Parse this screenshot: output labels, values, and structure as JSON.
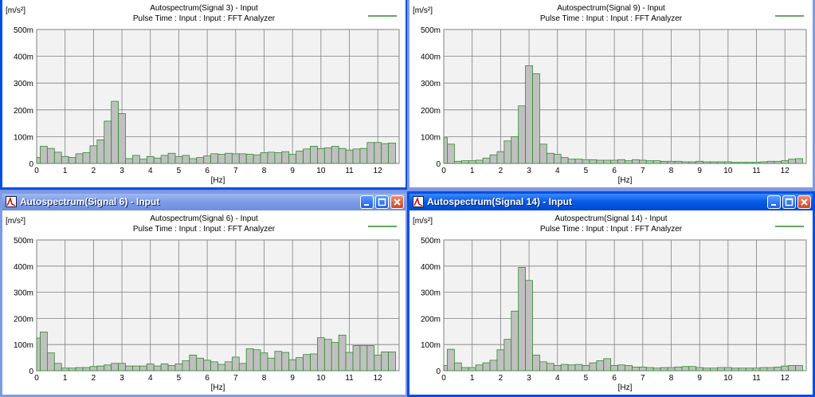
{
  "colors": {
    "bar_fill": "#c0c0c0",
    "bar_stroke": "#2e8b2e",
    "legend_line": "#2e8b2e",
    "grid": "#808080",
    "plot_bg": "#f2f2f2"
  },
  "windows": [
    {
      "id": "w3",
      "title_visible": false,
      "title": "",
      "plot": {
        "unit": "[m/s²]",
        "title1": "Autospectrum(Signal 3) - Input",
        "title2": "Pulse Time : Input : Input : FFT Analyzer",
        "xlabel": "[Hz]"
      },
      "chart_data": {
        "type": "bar",
        "series": [
          {
            "name": "",
            "values": [
              22,
              64,
              56,
              42,
              26,
              22,
              36,
              40,
              66,
              88,
              158,
              232,
              186,
              18,
              30,
              16,
              26,
              20,
              30,
              38,
              26,
              30,
              18,
              22,
              28,
              36,
              34,
              38,
              36,
              36,
              34,
              32,
              40,
              42,
              40,
              44,
              34,
              46,
              54,
              64,
              56,
              58,
              64,
              56,
              50,
              54,
              56,
              78,
              78,
              74,
              76
            ]
          }
        ],
        "bin_hz": 0.25,
        "x_ticks": [
          0,
          1,
          2,
          3,
          4,
          5,
          6,
          7,
          8,
          9,
          10,
          11,
          12
        ],
        "y_ticks": [
          "0",
          "100m",
          "200m",
          "300m",
          "400m",
          "500m"
        ],
        "ylim": [
          0,
          500
        ]
      }
    },
    {
      "id": "w9",
      "title_visible": false,
      "title": "",
      "plot": {
        "unit": "[m/s²]",
        "title1": "Autospectrum(Signal 9) - Input",
        "title2": "Pulse Time : Input : Input : FFT Analyzer",
        "xlabel": "[Hz]"
      },
      "chart_data": {
        "type": "bar",
        "series": [
          {
            "name": "",
            "values": [
              96,
              72,
              8,
              10,
              10,
              12,
              20,
              32,
              44,
              84,
              100,
              215,
              365,
              335,
              72,
              38,
              34,
              22,
              16,
              16,
              14,
              14,
              12,
              12,
              12,
              14,
              10,
              14,
              12,
              10,
              10,
              8,
              8,
              8,
              6,
              6,
              8,
              6,
              6,
              6,
              6,
              4,
              4,
              4,
              4,
              6,
              8,
              8,
              10,
              16,
              18
            ]
          }
        ],
        "bin_hz": 0.25,
        "x_ticks": [
          0,
          1,
          2,
          3,
          4,
          5,
          6,
          7,
          8,
          9,
          10,
          11,
          12
        ],
        "y_ticks": [
          "0",
          "100m",
          "200m",
          "300m",
          "400m",
          "500m"
        ],
        "ylim": [
          0,
          500
        ]
      }
    },
    {
      "id": "w6",
      "title_visible": true,
      "title": "Autospectrum(Signal 6) - Input",
      "plot": {
        "unit": "[m/s²]",
        "title1": "Autospectrum(Signal 6) - Input",
        "title2": "Pulse Time : Input : Input : FFT Analyzer",
        "xlabel": "[Hz]"
      },
      "chart_data": {
        "type": "bar",
        "series": [
          {
            "name": "",
            "values": [
              125,
              148,
              68,
              28,
              10,
              10,
              12,
              12,
              16,
              18,
              22,
              28,
              28,
              18,
              18,
              18,
              26,
              18,
              26,
              20,
              26,
              38,
              60,
              48,
              40,
              34,
              24,
              34,
              52,
              28,
              84,
              80,
              68,
              48,
              74,
              70,
              42,
              50,
              62,
              64,
              126,
              120,
              108,
              136,
              70,
              96,
              96,
              96,
              60,
              72,
              72
            ]
          }
        ],
        "bin_hz": 0.25,
        "x_ticks": [
          0,
          1,
          2,
          3,
          4,
          5,
          6,
          7,
          8,
          9,
          10,
          11,
          12
        ],
        "y_ticks": [
          "0",
          "100m",
          "200m",
          "300m",
          "400m",
          "500m"
        ],
        "ylim": [
          0,
          500
        ]
      }
    },
    {
      "id": "w14",
      "title_visible": true,
      "title": "Autospectrum(Signal 14) - Input",
      "plot": {
        "unit": "[m/s²]",
        "title1": "Autospectrum(Signal 14) - Input",
        "title2": "Pulse Time : Input : Input : FFT Analyzer",
        "xlabel": "[Hz]"
      },
      "chart_data": {
        "type": "bar",
        "series": [
          {
            "name": "",
            "values": [
              20,
              82,
              30,
              12,
              12,
              22,
              30,
              40,
              80,
              120,
              228,
              395,
              345,
              60,
              34,
              28,
              20,
              24,
              22,
              24,
              20,
              30,
              38,
              46,
              20,
              22,
              20,
              14,
              14,
              12,
              10,
              12,
              12,
              14,
              16,
              16,
              12,
              10,
              10,
              12,
              12,
              10,
              10,
              10,
              10,
              12,
              12,
              14,
              18,
              20,
              20
            ]
          }
        ],
        "bin_hz": 0.25,
        "x_ticks": [
          0,
          1,
          2,
          3,
          4,
          5,
          6,
          7,
          8,
          9,
          10,
          11,
          12
        ],
        "y_ticks": [
          "0",
          "100m",
          "200m",
          "300m",
          "400m",
          "500m"
        ],
        "ylim": [
          0,
          500
        ]
      }
    }
  ]
}
